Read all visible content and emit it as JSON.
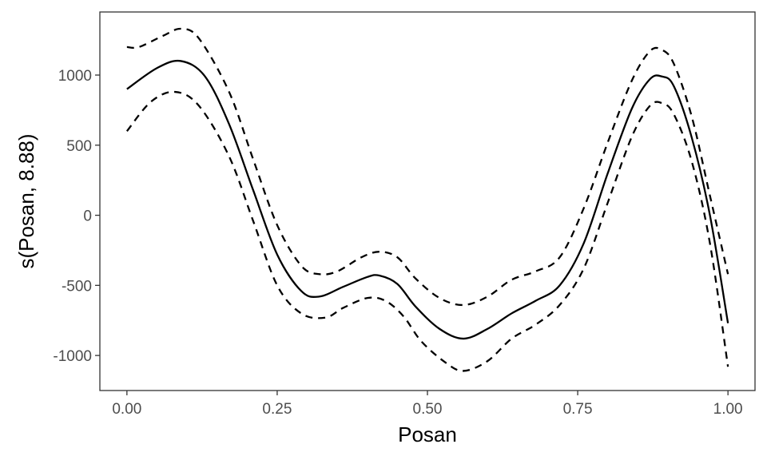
{
  "chart_data": {
    "type": "line",
    "title": "",
    "xlabel": "Posan",
    "ylabel": "s(Posan, 8.88)",
    "xlim": [
      -0.045,
      1.045
    ],
    "ylim": [
      -1250,
      1450
    ],
    "xticks": [
      0.0,
      0.25,
      0.5,
      0.75,
      1.0
    ],
    "xtick_labels": [
      "0.00",
      "0.25",
      "0.50",
      "0.75",
      "1.00"
    ],
    "yticks": [
      -1000,
      -500,
      0,
      500,
      1000
    ],
    "ytick_labels": [
      "-1000",
      "-500",
      "0",
      "500",
      "1000"
    ],
    "grid": false,
    "legend": "none",
    "series": [
      {
        "style": "solid",
        "x": [
          0.0,
          0.05,
          0.09,
          0.13,
          0.17,
          0.21,
          0.25,
          0.29,
          0.32,
          0.36,
          0.4,
          0.42,
          0.45,
          0.48,
          0.52,
          0.56,
          0.6,
          0.64,
          0.68,
          0.72,
          0.76,
          0.8,
          0.84,
          0.87,
          0.89,
          0.91,
          0.94,
          0.97,
          1.0
        ],
        "y": [
          900,
          1050,
          1100,
          990,
          650,
          180,
          -280,
          -540,
          -580,
          -510,
          -440,
          -430,
          -490,
          -650,
          -810,
          -880,
          -810,
          -700,
          -610,
          -500,
          -200,
          300,
          760,
          970,
          990,
          920,
          550,
          0,
          -770
        ]
      },
      {
        "style": "dashed",
        "x": [
          0.0,
          0.02,
          0.06,
          0.09,
          0.12,
          0.17,
          0.21,
          0.25,
          0.29,
          0.32,
          0.35,
          0.39,
          0.42,
          0.45,
          0.48,
          0.52,
          0.56,
          0.6,
          0.64,
          0.68,
          0.72,
          0.76,
          0.8,
          0.84,
          0.87,
          0.89,
          0.91,
          0.94,
          0.97,
          1.0
        ],
        "y": [
          1200,
          1200,
          1280,
          1330,
          1260,
          880,
          400,
          -70,
          -360,
          -420,
          -400,
          -300,
          -260,
          -300,
          -450,
          -590,
          -640,
          -580,
          -460,
          -400,
          -300,
          50,
          520,
          960,
          1170,
          1180,
          1080,
          700,
          140,
          -420
        ]
      },
      {
        "style": "dashed",
        "x": [
          0.0,
          0.04,
          0.08,
          0.12,
          0.17,
          0.21,
          0.25,
          0.29,
          0.33,
          0.36,
          0.4,
          0.43,
          0.46,
          0.49,
          0.53,
          0.56,
          0.6,
          0.64,
          0.68,
          0.72,
          0.76,
          0.8,
          0.84,
          0.87,
          0.89,
          0.91,
          0.94,
          0.97,
          1.0
        ],
        "y": [
          600,
          810,
          880,
          780,
          420,
          -40,
          -500,
          -700,
          -730,
          -660,
          -590,
          -610,
          -720,
          -900,
          -1050,
          -1110,
          -1040,
          -880,
          -780,
          -640,
          -380,
          90,
          560,
          780,
          800,
          720,
          380,
          -200,
          -1080
        ]
      }
    ]
  }
}
